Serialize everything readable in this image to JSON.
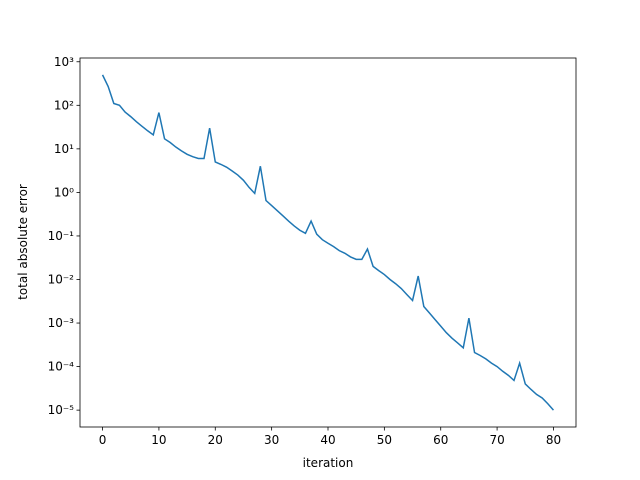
{
  "chart_data": {
    "type": "line",
    "log_y": true,
    "xlabel": "iteration",
    "ylabel": "total absolute error",
    "x": [
      0,
      1,
      2,
      3,
      4,
      5,
      6,
      7,
      8,
      9,
      10,
      11,
      12,
      13,
      14,
      15,
      16,
      17,
      18,
      19,
      20,
      21,
      22,
      23,
      24,
      25,
      26,
      27,
      28,
      29,
      30,
      31,
      32,
      33,
      34,
      35,
      36,
      37,
      38,
      39,
      40,
      41,
      42,
      43,
      44,
      45,
      46,
      47,
      48,
      49,
      50,
      51,
      52,
      53,
      54,
      55,
      56,
      57,
      58,
      59,
      60,
      61,
      62,
      63,
      64,
      65,
      66,
      67,
      68,
      69,
      70,
      71,
      72,
      73,
      74,
      75,
      76,
      77,
      78,
      79,
      80
    ],
    "series": [
      {
        "color": "#1f77b4",
        "values": [
          500,
          270,
          110,
          100,
          70,
          55,
          42,
          33,
          26,
          21,
          68,
          17,
          14,
          11,
          9,
          7.5,
          6.6,
          6,
          6,
          30,
          5,
          4.4,
          3.8,
          3.1,
          2.5,
          1.9,
          1.3,
          0.95,
          4,
          0.65,
          0.5,
          0.38,
          0.29,
          0.22,
          0.17,
          0.135,
          0.115,
          0.22,
          0.11,
          0.082,
          0.068,
          0.057,
          0.046,
          0.04,
          0.033,
          0.029,
          0.029,
          0.05,
          0.02,
          0.016,
          0.013,
          0.01,
          0.008,
          0.0062,
          0.0045,
          0.0033,
          0.012,
          0.0024,
          0.0017,
          0.0012,
          0.00085,
          0.0006,
          0.00045,
          0.00035,
          0.00027,
          0.0013,
          0.00021,
          0.00018,
          0.00015,
          0.00012,
          0.0001,
          7.8e-05,
          6.3e-05,
          4.8e-05,
          0.00012,
          4e-05,
          3e-05,
          2.3e-05,
          1.9e-05,
          1.4e-05,
          1e-05
        ]
      }
    ],
    "xlim": [
      -4,
      84
    ],
    "xticks": [
      0,
      10,
      20,
      30,
      40,
      50,
      60,
      70,
      80
    ],
    "ylim": [
      4.1e-06,
      1220
    ],
    "yticks": [
      {
        "value": 1e-05,
        "label": "10⁻⁵"
      },
      {
        "value": 0.0001,
        "label": "10⁻⁴"
      },
      {
        "value": 0.001,
        "label": "10⁻³"
      },
      {
        "value": 0.01,
        "label": "10⁻²"
      },
      {
        "value": 0.1,
        "label": "10⁻¹"
      },
      {
        "value": 1,
        "label": "10⁰"
      },
      {
        "value": 10,
        "label": "10¹"
      },
      {
        "value": 100,
        "label": "10²"
      },
      {
        "value": 1000,
        "label": "10³"
      }
    ]
  }
}
